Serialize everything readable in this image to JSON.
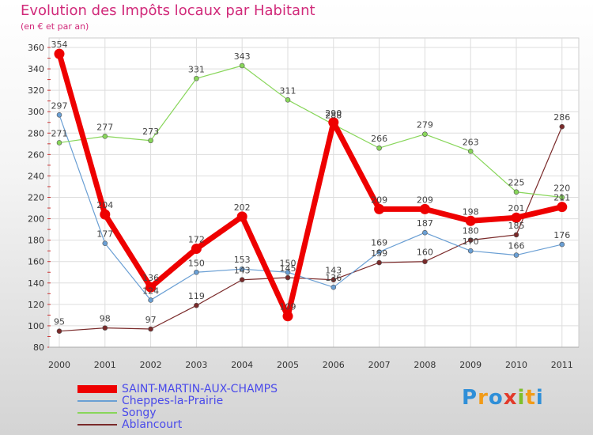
{
  "header": {
    "title": "Evolution des Impôts locaux par Habitant",
    "subtitle": "(en € et par an)"
  },
  "logo": {
    "text": "Proxiti",
    "letters": [
      "P",
      "r",
      "o",
      "x",
      "i",
      "t",
      "i"
    ],
    "colors": [
      "#2f8fd8",
      "#f29b17",
      "#2f8fd8",
      "#e23a2a",
      "#7fbf2a",
      "#f29b17",
      "#2f8fd8"
    ]
  },
  "chart_data": {
    "type": "line",
    "title": "Evolution des Impôts locaux par Habitant",
    "subtitle": "(en € et par an)",
    "xlabel": "",
    "ylabel": "",
    "categories": [
      "2000",
      "2001",
      "2002",
      "2003",
      "2004",
      "2005",
      "2006",
      "2007",
      "2008",
      "2009",
      "2010",
      "2011"
    ],
    "ylim": [
      80,
      360
    ],
    "yticks": [
      80,
      100,
      120,
      140,
      160,
      180,
      200,
      220,
      240,
      260,
      280,
      300,
      320,
      340,
      360
    ],
    "grid": true,
    "legend": "bottom-left",
    "series": [
      {
        "name": "SAINT-MARTIN-AUX-CHAMPS",
        "color": "#ee0000",
        "emphasis": true,
        "values": [
          354,
          204,
          136,
          172,
          202,
          109,
          290,
          209,
          209,
          198,
          201,
          211
        ]
      },
      {
        "name": "Cheppes-la-Prairie",
        "color": "#6a9fd4",
        "values": [
          297,
          177,
          124,
          150,
          153,
          150,
          136,
          169,
          187,
          170,
          166,
          176
        ]
      },
      {
        "name": "Songy",
        "color": "#88d65a",
        "values": [
          271,
          277,
          273,
          331,
          343,
          311,
          288,
          266,
          279,
          263,
          225,
          220
        ]
      },
      {
        "name": "Ablancourt",
        "color": "#7a2a2a",
        "values": [
          95,
          98,
          97,
          119,
          143,
          145,
          143,
          159,
          160,
          180,
          185,
          286
        ]
      }
    ]
  }
}
